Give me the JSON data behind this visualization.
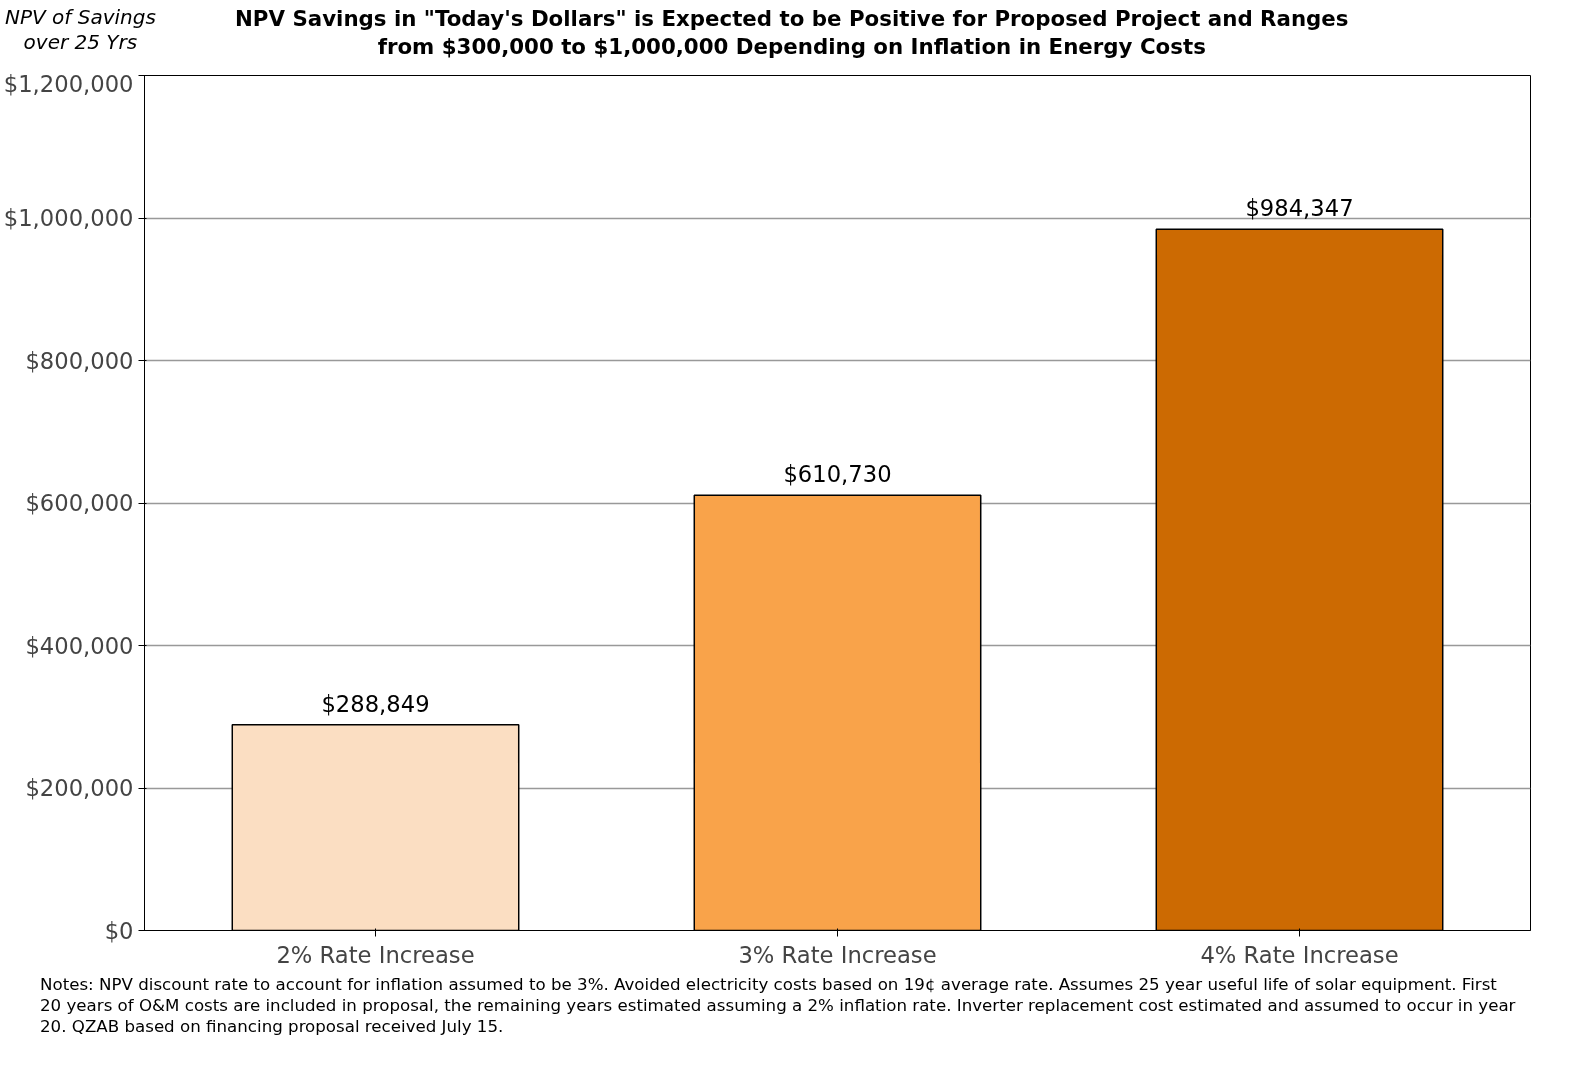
{
  "chart_data": {
    "type": "bar",
    "title": "NPV Savings in \"Today's Dollars\" is Expected to be Positive for Proposed Project and Ranges\nfrom $300,000 to $1,000,000 Depending on Inflation in Energy Costs",
    "ylabel": "NPV of Savings\nover 25 Yrs",
    "categories": [
      "2% Rate Increase",
      "3% Rate Increase",
      "4% Rate Increase"
    ],
    "values": [
      288849,
      610730,
      984347
    ],
    "colors": [
      "#fbdec2",
      "#f9a34a",
      "#cc6a02"
    ],
    "value_labels": [
      "$288,849",
      "$610,730",
      "$984,347"
    ],
    "ylim": [
      0,
      1200000
    ],
    "yticks": [
      {
        "value": 0,
        "label": "$0"
      },
      {
        "value": 200000,
        "label": "$200,000"
      },
      {
        "value": 400000,
        "label": "$400,000"
      },
      {
        "value": 600000,
        "label": "$600,000"
      },
      {
        "value": 800000,
        "label": "$800,000"
      },
      {
        "value": 1000000,
        "label": "$1,000,000"
      },
      {
        "value": 1200000,
        "label": "$1,200,000"
      }
    ],
    "grid": "y",
    "annotations": [
      "Notes: NPV discount rate to account for inflation assumed to be 3%. Avoided electricity costs based on 19¢ average rate.  Assumes 25 year useful life of solar equipment.  First 20 years of O&M costs are included in proposal, the remaining years estimated assuming a 2% inflation rate.  Inverter replacement cost estimated and assumed to occur in year 20.  QZAB based on financing proposal received July 15."
    ]
  }
}
